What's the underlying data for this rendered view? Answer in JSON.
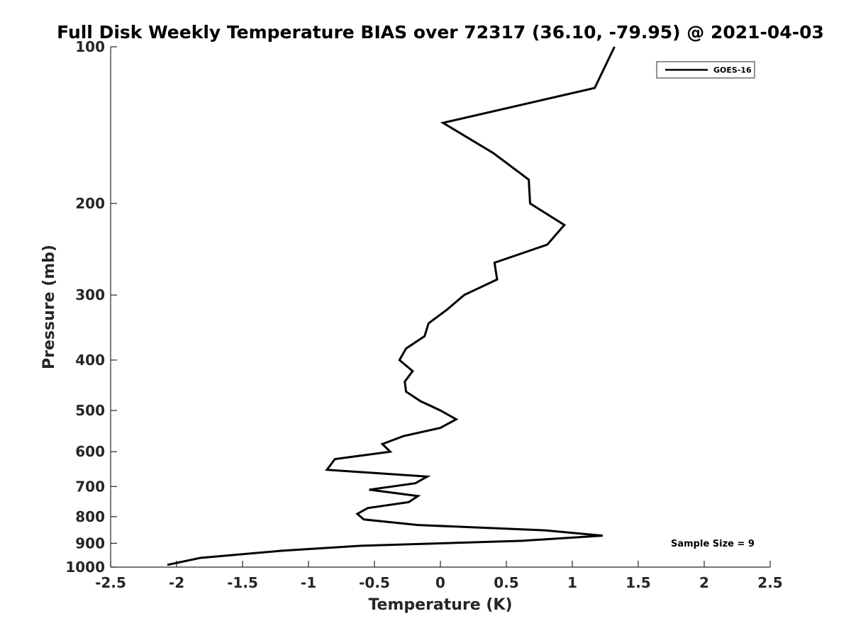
{
  "chart_data": {
    "type": "line",
    "title": "Full Disk Weekly Temperature BIAS over 72317 (36.10, -79.95) @ 2021-04-03",
    "xlabel": "Temperature (K)",
    "ylabel": "Pressure (mb)",
    "xlim": [
      -2.5,
      2.5
    ],
    "ylim": [
      1000,
      100
    ],
    "yscale": "log",
    "y_reversed": true,
    "grid": false,
    "x_ticks": [
      "-2.5",
      "-2",
      "-1.5",
      "-1",
      "-0.5",
      "0",
      "0.5",
      "1",
      "1.5",
      "2",
      "2.5"
    ],
    "y_ticks": [
      "100",
      "200",
      "300",
      "400",
      "500",
      "600",
      "700",
      "800",
      "900",
      "1000"
    ],
    "legend": {
      "position": "top-right",
      "entries": [
        "GOES-16"
      ]
    },
    "annotation": "Sample Size = 9",
    "line_color": "#000000",
    "series": [
      {
        "name": "GOES-16",
        "points": [
          {
            "x": 1.32,
            "y": 100
          },
          {
            "x": 1.17,
            "y": 120
          },
          {
            "x": 0.02,
            "y": 140
          },
          {
            "x": 0.4,
            "y": 160
          },
          {
            "x": 0.67,
            "y": 180
          },
          {
            "x": 0.68,
            "y": 200
          },
          {
            "x": 0.94,
            "y": 220
          },
          {
            "x": 0.81,
            "y": 240
          },
          {
            "x": 0.41,
            "y": 260
          },
          {
            "x": 0.43,
            "y": 280
          },
          {
            "x": 0.18,
            "y": 300
          },
          {
            "x": 0.05,
            "y": 320
          },
          {
            "x": -0.09,
            "y": 340
          },
          {
            "x": -0.12,
            "y": 360
          },
          {
            "x": -0.26,
            "y": 380
          },
          {
            "x": -0.31,
            "y": 400
          },
          {
            "x": -0.21,
            "y": 420
          },
          {
            "x": -0.27,
            "y": 440
          },
          {
            "x": -0.26,
            "y": 460
          },
          {
            "x": -0.15,
            "y": 480
          },
          {
            "x": 0.0,
            "y": 500
          },
          {
            "x": 0.12,
            "y": 520
          },
          {
            "x": 0.0,
            "y": 540
          },
          {
            "x": -0.28,
            "y": 560
          },
          {
            "x": -0.44,
            "y": 580
          },
          {
            "x": -0.38,
            "y": 600
          },
          {
            "x": -0.8,
            "y": 620
          },
          {
            "x": -0.86,
            "y": 650
          },
          {
            "x": -0.1,
            "y": 670
          },
          {
            "x": -0.19,
            "y": 690
          },
          {
            "x": -0.54,
            "y": 710
          },
          {
            "x": -0.17,
            "y": 730
          },
          {
            "x": -0.24,
            "y": 750
          },
          {
            "x": -0.55,
            "y": 770
          },
          {
            "x": -0.63,
            "y": 790
          },
          {
            "x": -0.58,
            "y": 810
          },
          {
            "x": -0.17,
            "y": 830
          },
          {
            "x": 0.8,
            "y": 850
          },
          {
            "x": 1.23,
            "y": 870
          },
          {
            "x": 0.62,
            "y": 890
          },
          {
            "x": -0.6,
            "y": 910
          },
          {
            "x": -1.2,
            "y": 930
          },
          {
            "x": -1.82,
            "y": 960
          },
          {
            "x": -2.07,
            "y": 990
          }
        ]
      }
    ]
  }
}
